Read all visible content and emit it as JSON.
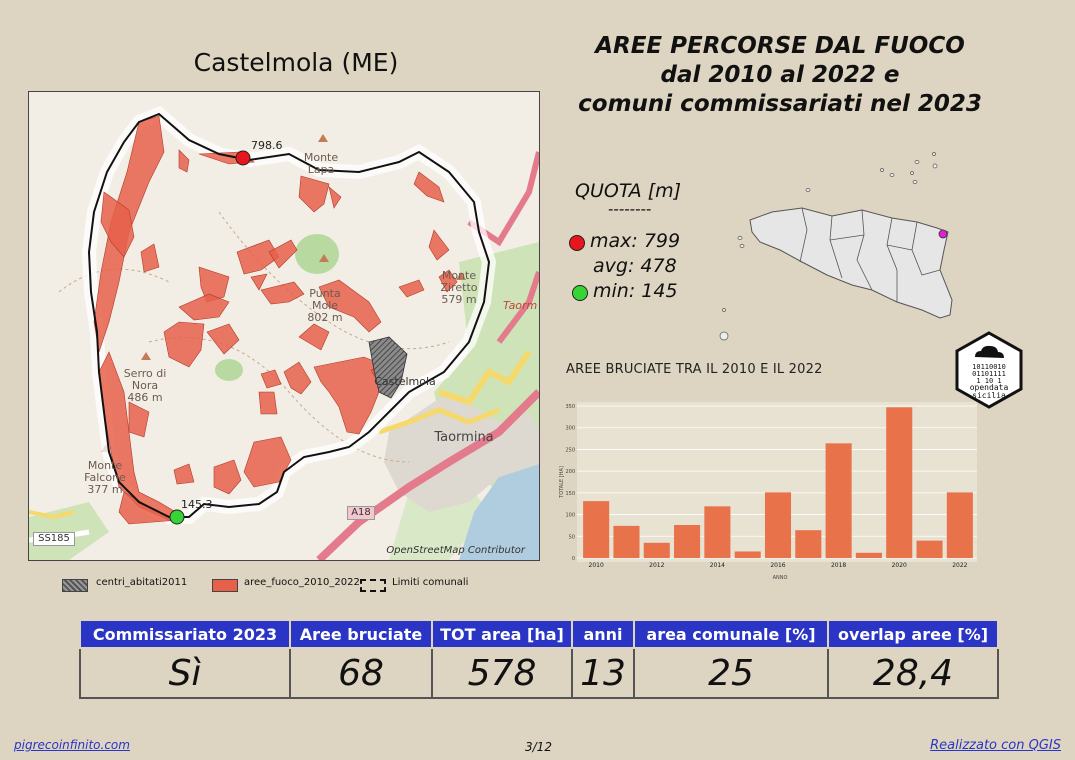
{
  "header": {
    "comune_title": "Castelmola (ME)",
    "title_lines": [
      "AREE PERCORSE DAL FUOCO",
      "dal 2010 al 2022 e",
      "comuni commissariati nel 2023"
    ]
  },
  "map": {
    "attribution": "OpenStreetMap Contributor",
    "labels": {
      "max_value": "798.6",
      "min_value": "145.3",
      "monte_lapa": "Monte\nLapa",
      "monte_ziretto": "Monte\nZiretto\n579 m",
      "punta_mole": "Punta\nMole\n802 m",
      "serro_di_nora": "Serro di\nNora\n486 m",
      "monte_falcone": "Monte\nFalcone\n377 m",
      "castelmola": "Castelmola",
      "taormina": "Taormina",
      "taormina_road": "Taorm",
      "a18": "A18",
      "ss185": "SS185"
    },
    "colors": {
      "burned": "#e6604a",
      "border": "#111111"
    }
  },
  "quota": {
    "title": "QUOTA [m]",
    "separator": "--------",
    "max_label": "max: 799",
    "avg_label": "avg: 478",
    "min_label": "min: 145",
    "max_color": "#e8141e",
    "min_color": "#37d437"
  },
  "logo": {
    "bits": [
      "10110010",
      "01101111",
      "1    10 1"
    ],
    "text1": "opendata",
    "text2": "sicilia"
  },
  "chart_title": "AREE BRUCIATE TRA IL 2010 E IL 2022",
  "chart_data": {
    "type": "bar",
    "title": "AREE BRUCIATE TRA IL 2010 E IL 2022",
    "xlabel": "ANNO",
    "ylabel": "TOTALE [HA]",
    "categories": [
      "2010",
      "2011",
      "2012",
      "2013",
      "2014",
      "2015",
      "2016",
      "2017",
      "2018",
      "2019",
      "2020",
      "2021",
      "2022"
    ],
    "values": [
      131,
      74,
      35,
      76,
      119,
      15,
      151,
      64,
      264,
      12,
      347,
      40,
      151
    ],
    "ylim": [
      0,
      350
    ],
    "yticks": [
      0,
      50,
      100,
      150,
      200,
      250,
      300,
      350
    ],
    "xtick_labels": [
      "2010",
      "2012",
      "2014",
      "2016",
      "2018",
      "2020",
      "2022"
    ],
    "bar_color": "#e8724a",
    "grid": true
  },
  "legend": {
    "centri": "centri_abitati2011",
    "aree": "aree_fuoco_2010_2022",
    "limiti": "Limiti comunali"
  },
  "table": {
    "headers": [
      "Commissariato 2023",
      "Aree bruciate",
      "TOT area [ha]",
      "anni",
      "area comunale [%]",
      "overlap aree [%]"
    ],
    "values": [
      "Sì",
      "68",
      "578",
      "13",
      "25",
      "28,4"
    ]
  },
  "footer": {
    "left": "pigrecoinfinito.com",
    "center": "3/12",
    "right": "Realizzato con QGIS"
  }
}
